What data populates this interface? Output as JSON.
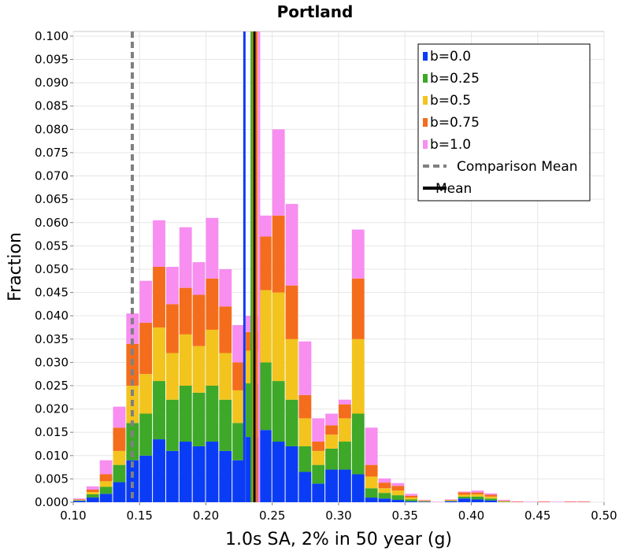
{
  "chart_data": {
    "type": "bar",
    "stacked": true,
    "title": "Portland",
    "xlabel": "1.0s SA, 2% in 50 year (g)",
    "ylabel": "Fraction",
    "xlim": [
      0.1,
      0.5
    ],
    "ylim": [
      0.0,
      0.101
    ],
    "xticks": [
      "0.10",
      "0.15",
      "0.20",
      "0.25",
      "0.30",
      "0.35",
      "0.40",
      "0.45",
      "0.50"
    ],
    "yticks": [
      "0.000",
      "0.005",
      "0.010",
      "0.015",
      "0.020",
      "0.025",
      "0.030",
      "0.035",
      "0.040",
      "0.045",
      "0.050",
      "0.055",
      "0.060",
      "0.065",
      "0.070",
      "0.075",
      "0.080",
      "0.085",
      "0.090",
      "0.095",
      "0.100"
    ],
    "grid": true,
    "legend_position": "top-right",
    "bin_width": 0.01,
    "bin_centers": [
      0.105,
      0.115,
      0.125,
      0.135,
      0.145,
      0.155,
      0.165,
      0.175,
      0.185,
      0.195,
      0.205,
      0.215,
      0.225,
      0.235,
      0.245,
      0.255,
      0.265,
      0.275,
      0.285,
      0.295,
      0.305,
      0.315,
      0.325,
      0.335,
      0.345,
      0.355,
      0.365,
      0.375,
      0.385,
      0.395,
      0.405,
      0.415,
      0.425,
      0.435,
      0.445,
      0.455,
      0.465,
      0.475,
      0.485
    ],
    "series": [
      {
        "name": "b=0.0",
        "color": "#0b3cf5",
        "values": [
          0.0003,
          0.001,
          0.0018,
          0.0043,
          0.009,
          0.01,
          0.0135,
          0.011,
          0.013,
          0.012,
          0.013,
          0.011,
          0.009,
          0.014,
          0.0155,
          0.013,
          0.012,
          0.0065,
          0.004,
          0.007,
          0.007,
          0.006,
          0.001,
          0.0008,
          0.0005,
          0.0002,
          0.0001,
          0.0,
          0.0002,
          0.0008,
          0.0006,
          0.0004,
          0.0,
          0.0,
          0.0,
          0.0,
          0.0,
          0.0,
          0.0
        ]
      },
      {
        "name": "b=0.25",
        "color": "#3ea828",
        "values": [
          0.0001,
          0.0007,
          0.0015,
          0.0037,
          0.008,
          0.009,
          0.0125,
          0.011,
          0.012,
          0.0115,
          0.012,
          0.011,
          0.008,
          0.0115,
          0.0145,
          0.013,
          0.01,
          0.0055,
          0.004,
          0.0045,
          0.006,
          0.013,
          0.002,
          0.0012,
          0.001,
          0.0004,
          0.0001,
          0.0,
          0.0001,
          0.0004,
          0.0006,
          0.0004,
          0.0001,
          0.0,
          0.0,
          0.0,
          0.0,
          0.0,
          0.0
        ]
      },
      {
        "name": "b=0.5",
        "color": "#f2c41d",
        "values": [
          0.0001,
          0.0005,
          0.0012,
          0.003,
          0.008,
          0.0085,
          0.0115,
          0.01,
          0.011,
          0.01,
          0.012,
          0.01,
          0.007,
          0.007,
          0.0155,
          0.019,
          0.013,
          0.006,
          0.003,
          0.003,
          0.005,
          0.016,
          0.0025,
          0.001,
          0.001,
          0.0004,
          0.0001,
          0.0,
          0.0001,
          0.0004,
          0.0005,
          0.0004,
          0.0001,
          0.0,
          0.0,
          0.0,
          0.0,
          0.0,
          0.0
        ]
      },
      {
        "name": "b=0.75",
        "color": "#f46d1c",
        "values": [
          0.0001,
          0.0005,
          0.0015,
          0.005,
          0.009,
          0.011,
          0.013,
          0.0105,
          0.01,
          0.011,
          0.011,
          0.01,
          0.006,
          0.004,
          0.0115,
          0.0165,
          0.0115,
          0.005,
          0.002,
          0.002,
          0.003,
          0.013,
          0.0025,
          0.0012,
          0.001,
          0.0004,
          0.0001,
          0.0,
          0.0001,
          0.0005,
          0.0004,
          0.0004,
          0.0001,
          0.0001,
          0.0,
          0.0001,
          0.0,
          0.0001,
          0.0001
        ]
      },
      {
        "name": "b=1.0",
        "color": "#f78ef0",
        "values": [
          0.0002,
          0.0007,
          0.003,
          0.0045,
          0.0065,
          0.009,
          0.01,
          0.008,
          0.013,
          0.007,
          0.013,
          0.008,
          0.008,
          0.0035,
          0.0045,
          0.0185,
          0.0175,
          0.0115,
          0.005,
          0.0025,
          0.001,
          0.0105,
          0.008,
          0.0009,
          0.0006,
          0.0004,
          0.0001,
          0.0001,
          0.0001,
          0.0002,
          0.0004,
          0.0003,
          0.0002,
          0.0001,
          0.0001,
          0.0001,
          0.0001,
          0.0001,
          0.0001
        ]
      }
    ],
    "vertical_lines": [
      {
        "name": "b=0.0",
        "x": 0.229,
        "color": "#0b3cf5",
        "style": "solid"
      },
      {
        "name": "b=0.25",
        "x": 0.2345,
        "color": "#3ea828",
        "style": "solid"
      },
      {
        "name": "b=0.5",
        "x": 0.236,
        "color": "#f2c41d",
        "style": "solid"
      },
      {
        "name": "b=0.75",
        "x": 0.238,
        "color": "#f46d1c",
        "style": "solid"
      },
      {
        "name": "b=1.0",
        "x": 0.24,
        "color": "#f78ef0",
        "style": "solid"
      },
      {
        "name": "Comparison Mean",
        "x": 0.1445,
        "color": "#808080",
        "style": "dashed"
      },
      {
        "name": "Mean",
        "x": 0.2365,
        "color": "#000000",
        "style": "solid"
      }
    ],
    "legend": [
      {
        "label": "b=0.0",
        "color": "#0b3cf5",
        "kind": "square"
      },
      {
        "label": "b=0.25",
        "color": "#3ea828",
        "kind": "square"
      },
      {
        "label": "b=0.5",
        "color": "#f2c41d",
        "kind": "square"
      },
      {
        "label": "b=0.75",
        "color": "#f46d1c",
        "kind": "square"
      },
      {
        "label": "b=1.0",
        "color": "#f78ef0",
        "kind": "square"
      },
      {
        "label": "Comparison Mean",
        "color": "#808080",
        "kind": "dashed-line"
      },
      {
        "label": "Mean",
        "color": "#000000",
        "kind": "line"
      }
    ]
  }
}
